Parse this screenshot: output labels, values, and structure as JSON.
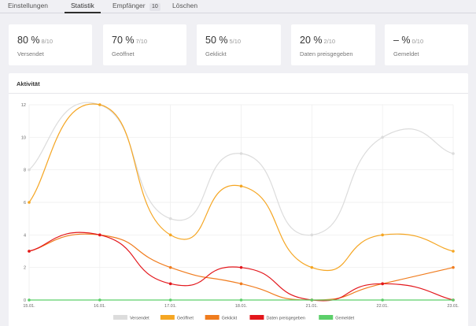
{
  "tabs": [
    {
      "label": "Einstellungen"
    },
    {
      "label": "Statistik"
    },
    {
      "label": "Empfänger",
      "badge": "10"
    },
    {
      "label": "Löschen"
    }
  ],
  "cards": [
    {
      "value": "80 %",
      "fraction": "8/10",
      "label": "Versendet"
    },
    {
      "value": "70 %",
      "fraction": "7/10",
      "label": "Geöffnet"
    },
    {
      "value": "50 %",
      "fraction": "5/10",
      "label": "Geklickt"
    },
    {
      "value": "20 %",
      "fraction": "2/10",
      "label": "Daten preisgegeben"
    },
    {
      "value": "– %",
      "fraction": "0/10",
      "label": "Gemeldet"
    }
  ],
  "panel": {
    "title": "Aktivität"
  },
  "chart_data": {
    "type": "line",
    "x": [
      "15.01.",
      "16.01.",
      "17.01.",
      "18.01.",
      "21.01.",
      "22.01.",
      "23.01."
    ],
    "ylim": [
      0,
      12
    ],
    "yticks": [
      0,
      2,
      4,
      6,
      8,
      10,
      12
    ],
    "grid": true,
    "legend": "bottom",
    "series": [
      {
        "name": "Versendet",
        "color": "#dcdcdc",
        "values": [
          8,
          12,
          5,
          9,
          4,
          10,
          9
        ]
      },
      {
        "name": "Geöffnet",
        "color": "#f5a623",
        "values": [
          6,
          12,
          4,
          7,
          2,
          4,
          3
        ]
      },
      {
        "name": "Geklickt",
        "color": "#f07c1e",
        "values": [
          3,
          4,
          2,
          1,
          0,
          1,
          2
        ]
      },
      {
        "name": "Daten preisgegeben",
        "color": "#e3171c",
        "values": [
          3,
          4,
          1,
          2,
          0,
          1,
          0
        ]
      },
      {
        "name": "Gemeldet",
        "color": "#5ccf6a",
        "values": [
          0,
          0,
          0,
          0,
          0,
          0,
          0
        ]
      }
    ]
  }
}
